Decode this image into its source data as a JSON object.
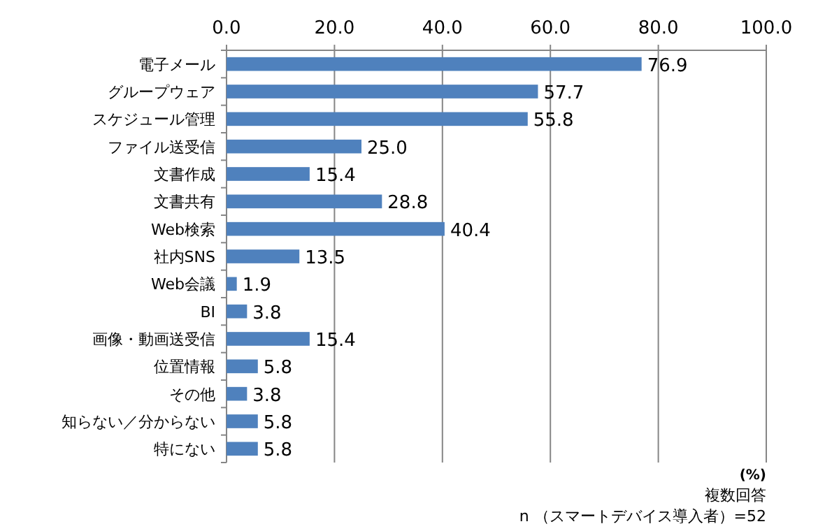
{
  "chart_data": {
    "type": "bar",
    "orientation": "horizontal",
    "categories": [
      "電子メール",
      "グループウェア",
      "スケジュール管理",
      "ファイル送受信",
      "文書作成",
      "文書共有",
      "Web検索",
      "社内SNS",
      "Web会議",
      "BI",
      "画像・動画送受信",
      "位置情報",
      "その他",
      "知らない／分からない",
      "特にない"
    ],
    "values": [
      76.9,
      57.7,
      55.8,
      25.0,
      15.4,
      28.8,
      40.4,
      13.5,
      1.9,
      3.8,
      15.4,
      5.8,
      3.8,
      5.8,
      5.8
    ],
    "value_labels": [
      "76.9",
      "57.7",
      "55.8",
      "25.0",
      "15.4",
      "28.8",
      "40.4",
      "13.5",
      "1.9",
      "3.8",
      "15.4",
      "5.8",
      "3.8",
      "5.8",
      "5.8"
    ],
    "color": "#4f81bd",
    "xlim": [
      0,
      100
    ],
    "xticks": [
      {
        "value": 0,
        "label": "0.0"
      },
      {
        "value": 20,
        "label": "20.0"
      },
      {
        "value": 40,
        "label": "40.0"
      },
      {
        "value": 60,
        "label": "60.0"
      },
      {
        "value": 80,
        "label": "80.0"
      },
      {
        "value": 100,
        "label": "100.0"
      }
    ],
    "grid": "x",
    "annotations": [
      "(%)",
      "複数回答",
      "n （スマートデバイス導入者）=52"
    ]
  }
}
